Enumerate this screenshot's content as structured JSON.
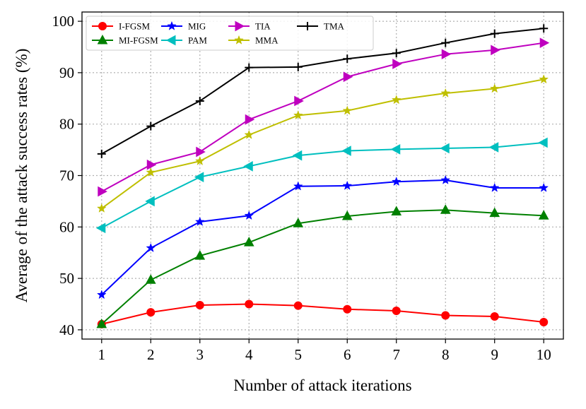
{
  "chart_data": {
    "type": "line",
    "xlabel": "Number of attack iterations",
    "ylabel": "Average of the attack success rates (%)",
    "x": [
      1,
      2,
      3,
      4,
      5,
      6,
      7,
      8,
      9,
      10
    ],
    "xticks": [
      "1",
      "2",
      "3",
      "4",
      "5",
      "6",
      "7",
      "8",
      "9",
      "10"
    ],
    "yticks": [
      "40",
      "50",
      "60",
      "70",
      "80",
      "90",
      "100"
    ],
    "ylim": [
      38.2,
      101.8
    ],
    "xlim": [
      0.6,
      10.4
    ],
    "grid": true,
    "legend_position": "top-left",
    "series": [
      {
        "name": "I-FGSM",
        "color": "#ff0000",
        "marker": "circle",
        "values": [
          41.1,
          43.4,
          44.8,
          45.0,
          44.7,
          44.0,
          43.7,
          42.8,
          42.6,
          41.5
        ]
      },
      {
        "name": "MI-FGSM",
        "color": "#008000",
        "marker": "triangle-up",
        "values": [
          41.1,
          49.7,
          54.4,
          57.0,
          60.7,
          62.1,
          63.0,
          63.3,
          62.7,
          62.2
        ]
      },
      {
        "name": "MIG",
        "color": "#0000ff",
        "marker": "star",
        "values": [
          46.8,
          55.9,
          61.0,
          62.2,
          67.9,
          68.0,
          68.8,
          69.1,
          67.6,
          67.6
        ]
      },
      {
        "name": "PAM",
        "color": "#00bfbf",
        "marker": "triangle-left",
        "values": [
          59.8,
          65.0,
          69.7,
          71.8,
          73.9,
          74.8,
          75.1,
          75.3,
          75.5,
          76.4
        ]
      },
      {
        "name": "TIA",
        "color": "#bf00bf",
        "marker": "triangle-right",
        "values": [
          66.9,
          72.1,
          74.6,
          80.9,
          84.5,
          89.2,
          91.7,
          93.6,
          94.4,
          95.8
        ]
      },
      {
        "name": "MMA",
        "color": "#bfbf00",
        "marker": "star",
        "values": [
          63.6,
          70.6,
          72.8,
          77.9,
          81.7,
          82.6,
          84.7,
          86.0,
          86.9,
          88.7
        ]
      },
      {
        "name": "TMA",
        "color": "#000000",
        "marker": "plus",
        "values": [
          74.2,
          79.6,
          84.5,
          91.0,
          91.1,
          92.7,
          93.8,
          95.8,
          97.6,
          98.6
        ]
      }
    ]
  }
}
